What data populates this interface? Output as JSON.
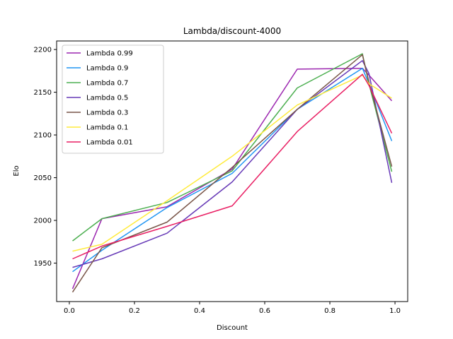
{
  "chart_data": {
    "type": "line",
    "title": "Lambda/discount-4000",
    "xlabel": "Discount",
    "ylabel": "Elo",
    "xlim": [
      -0.039,
      1.039
    ],
    "ylim": [
      1905,
      2210
    ],
    "x_ticks": [
      0.0,
      0.2,
      0.4,
      0.6,
      0.8,
      1.0
    ],
    "x_tick_labels": [
      "0.0",
      "0.2",
      "0.4",
      "0.6",
      "0.8",
      "1.0"
    ],
    "y_ticks": [
      1950,
      2000,
      2050,
      2100,
      2150,
      2200
    ],
    "y_tick_labels": [
      "1950",
      "2000",
      "2050",
      "2100",
      "2150",
      "2200"
    ],
    "grid": false,
    "legend_position": "top-left",
    "x": [
      0.01,
      0.1,
      0.3,
      0.5,
      0.7,
      0.9,
      0.92,
      0.99
    ],
    "series": [
      {
        "name": "Lambda 0.99",
        "color": "#9c27b0",
        "values": [
          1920,
          2002,
          2016,
          2060,
          2177,
          2178,
          2170,
          2140
        ]
      },
      {
        "name": "Lambda 0.9",
        "color": "#2196f3",
        "values": [
          1940,
          1965,
          2015,
          2055,
          2130,
          2178,
          2160,
          2093
        ]
      },
      {
        "name": "Lambda 0.7",
        "color": "#4caf50",
        "values": [
          1976,
          2002,
          2021,
          2058,
          2155,
          2195,
          2160,
          2057
        ]
      },
      {
        "name": "Lambda 0.5",
        "color": "#673ab7",
        "values": [
          1945,
          1955,
          1985,
          2045,
          2130,
          2187,
          2172,
          2044
        ]
      },
      {
        "name": "Lambda 0.3",
        "color": "#795548",
        "values": [
          1916,
          1968,
          1998,
          2062,
          2130,
          2194,
          2162,
          2063
        ]
      },
      {
        "name": "Lambda 0.1",
        "color": "#ffeb3b",
        "values": [
          1964,
          1972,
          2023,
          2075,
          2135,
          2170,
          2160,
          2143
        ]
      },
      {
        "name": "Lambda 0.01",
        "color": "#e91e63",
        "values": [
          1955,
          1970,
          1993,
          2017,
          2104,
          2171,
          2158,
          2102
        ]
      }
    ]
  }
}
